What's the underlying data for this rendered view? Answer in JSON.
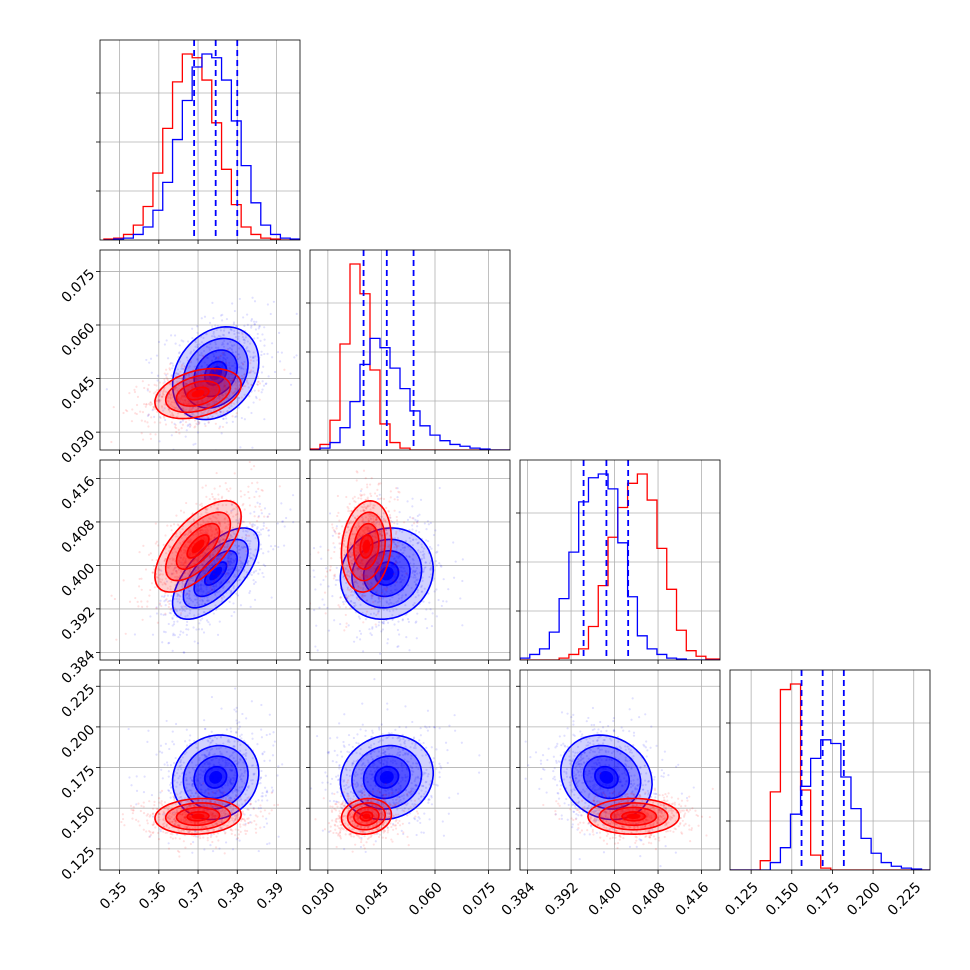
{
  "chart_data": {
    "type": "corner",
    "colors": {
      "red": "#ff0000",
      "blue": "#0000ff"
    },
    "grid": true,
    "parameters": [
      {
        "range": [
          0.345,
          0.396
        ],
        "ticks": [
          "0.35",
          "0.36",
          "0.37",
          "0.38",
          "0.39"
        ],
        "tick_values": [
          0.35,
          0.36,
          0.37,
          0.38,
          0.39
        ]
      },
      {
        "range": [
          0.025,
          0.081
        ],
        "ticks": [
          "0.030",
          "0.045",
          "0.060",
          "0.075"
        ],
        "tick_values": [
          0.03,
          0.045,
          0.06,
          0.075
        ]
      },
      {
        "range": [
          0.3826,
          0.4194
        ],
        "ticks": [
          "0.384",
          "0.392",
          "0.400",
          "0.408",
          "0.416"
        ],
        "tick_values": [
          0.384,
          0.392,
          0.4,
          0.408,
          0.416
        ]
      },
      {
        "range": [
          0.112,
          0.235
        ],
        "ticks": [
          "0.125",
          "0.150",
          "0.175",
          "0.200",
          "0.225"
        ],
        "tick_values": [
          0.125,
          0.15,
          0.175,
          0.2,
          0.225
        ]
      }
    ],
    "quantiles_blue": [
      [
        0.369,
        0.3745,
        0.38
      ],
      [
        0.04,
        0.0465,
        0.054
      ],
      [
        0.3943,
        0.3985,
        0.4025
      ],
      [
        0.156,
        0.169,
        0.182
      ]
    ],
    "marginals": [
      {
        "bin_edges": [
          0.346,
          0.3485,
          0.351,
          0.3535,
          0.356,
          0.3585,
          0.361,
          0.3635,
          0.366,
          0.3685,
          0.371,
          0.3735,
          0.376,
          0.3785,
          0.381,
          0.3835,
          0.386,
          0.3885,
          0.391,
          0.3935,
          0.396
        ],
        "red": [
          0.5,
          1,
          3,
          8,
          18,
          36,
          60,
          85,
          100,
          98,
          86,
          63,
          38,
          19,
          7,
          3,
          1,
          0.5,
          0,
          0
        ],
        "blue": [
          0,
          0.5,
          1,
          3,
          7,
          16,
          31,
          54,
          75,
          93,
          100,
          98,
          86,
          64,
          40,
          20,
          8,
          3,
          1,
          0.5
        ]
      },
      {
        "bin_edges": [
          0.025,
          0.0278,
          0.0306,
          0.0334,
          0.0362,
          0.039,
          0.0418,
          0.0446,
          0.0474,
          0.0502,
          0.053,
          0.0558,
          0.0586,
          0.0614,
          0.0642,
          0.067,
          0.0698,
          0.0726,
          0.0754,
          0.0782,
          0.081
        ],
        "red": [
          0.5,
          3,
          16,
          57,
          100,
          84,
          43,
          14,
          4,
          1,
          0,
          0,
          0,
          0,
          0,
          0,
          0,
          0,
          0,
          0
        ],
        "blue": [
          0,
          1,
          4,
          12,
          26,
          46,
          60,
          55,
          44,
          33,
          21,
          13,
          8,
          5,
          3,
          2,
          1,
          0.5,
          0,
          0
        ],
        "blue_note": ""
      },
      {
        "bin_edges": [
          0.3826,
          0.3844,
          0.3862,
          0.388,
          0.3898,
          0.3916,
          0.3934,
          0.3952,
          0.397,
          0.3988,
          0.4006,
          0.4024,
          0.4042,
          0.406,
          0.4078,
          0.4096,
          0.4114,
          0.4132,
          0.415,
          0.4168,
          0.4194
        ],
        "red": [
          0,
          0,
          0,
          0,
          1,
          3,
          6,
          18,
          40,
          66,
          82,
          95,
          100,
          86,
          60,
          38,
          16,
          5,
          2,
          0.5
        ],
        "blue": [
          1,
          3,
          6,
          15,
          33,
          58,
          85,
          98,
          100,
          92,
          63,
          34,
          13,
          6,
          3,
          1,
          0.5,
          0,
          0,
          0
        ]
      },
      {
        "bin_edges": [
          0.112,
          0.1182,
          0.1244,
          0.1306,
          0.1368,
          0.143,
          0.1492,
          0.1554,
          0.1616,
          0.1678,
          0.174,
          0.1802,
          0.1864,
          0.1926,
          0.1988,
          0.205,
          0.2112,
          0.2174,
          0.2236,
          0.2298,
          0.235
        ],
        "red": [
          0,
          0,
          0,
          5,
          42,
          97,
          100,
          43,
          8,
          1,
          0,
          0,
          0,
          0,
          0,
          0,
          0,
          0,
          0,
          0
        ],
        "blue": [
          0,
          0,
          0,
          0,
          4,
          12,
          30,
          45,
          60,
          70,
          68,
          50,
          33,
          17,
          9,
          4,
          2,
          1,
          0.5,
          0
        ]
      }
    ],
    "joint": {
      "blue": {
        "mean": [
          0.3745,
          0.0465,
          0.3985,
          0.169
        ],
        "sd": [
          0.0055,
          0.0065,
          0.0042,
          0.013
        ]
      },
      "red": {
        "mean": [
          0.37,
          0.0408,
          0.4035,
          0.145
        ],
        "sd": [
          0.0055,
          0.0035,
          0.0042,
          0.0055
        ]
      },
      "panels": [
        {
          "row": 1,
          "col": 0,
          "blue_corr": 0.25,
          "red_corr": 0.35
        },
        {
          "row": 2,
          "col": 0,
          "blue_corr": 0.65,
          "red_corr": 0.65
        },
        {
          "row": 2,
          "col": 1,
          "blue_corr": 0.1,
          "red_corr": 0.15
        },
        {
          "row": 3,
          "col": 0,
          "blue_corr": 0.1,
          "red_corr": 0.1
        },
        {
          "row": 3,
          "col": 1,
          "blue_corr": 0.1,
          "red_corr": 0.1
        },
        {
          "row": 3,
          "col": 2,
          "blue_corr": -0.15,
          "red_corr": 0.0
        }
      ]
    }
  }
}
